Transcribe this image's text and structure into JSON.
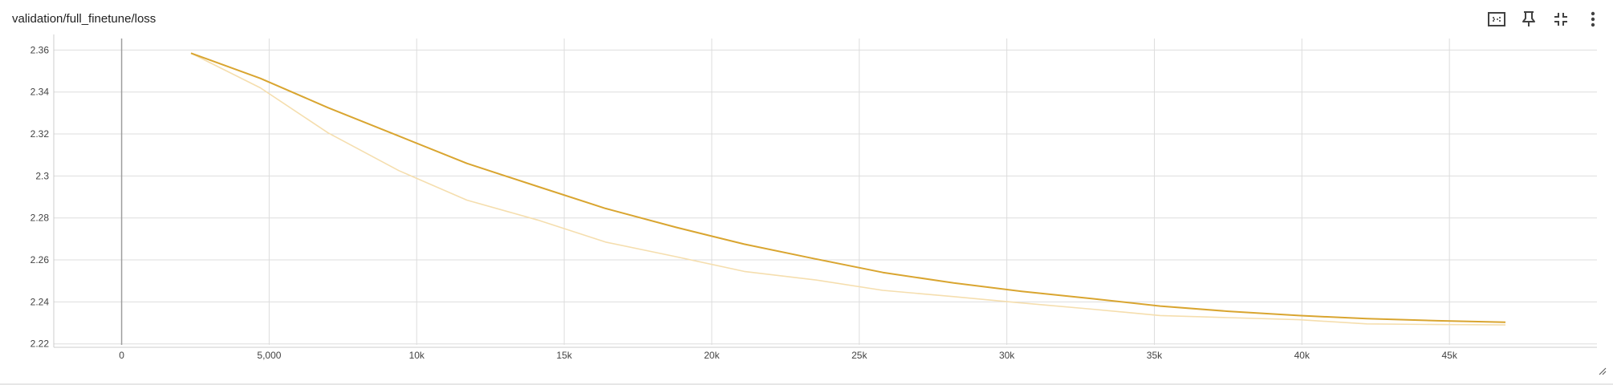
{
  "card": {
    "title": "validation/full_finetune/loss"
  },
  "toolbar": {
    "icons": [
      "fit-domain-icon",
      "pin-icon",
      "collapse-icon",
      "more-vert-icon"
    ]
  },
  "colors": {
    "smoothed": "#d9a530",
    "raw": "#f5deae",
    "grid": "#dddddd",
    "axis_zero": "#9e9e9e"
  },
  "chart_data": {
    "type": "line",
    "title": "validation/full_finetune/loss",
    "xlabel": "",
    "ylabel": "",
    "xlim": [
      -2300,
      50000
    ],
    "ylim": [
      2.2195,
      2.3655
    ],
    "grid": true,
    "x_ticks": [
      0,
      5000,
      10000,
      15000,
      20000,
      25000,
      30000,
      35000,
      40000,
      45000
    ],
    "x_tick_labels": [
      "0",
      "5,000",
      "10k",
      "15k",
      "20k",
      "25k",
      "30k",
      "35k",
      "40k",
      "45k"
    ],
    "y_ticks": [
      2.22,
      2.24,
      2.26,
      2.28,
      2.3,
      2.32,
      2.34,
      2.36
    ],
    "y_tick_labels": [
      "2.22",
      "2.24",
      "2.26",
      "2.28",
      "2.3",
      "2.32",
      "2.34",
      "2.36"
    ],
    "series": [
      {
        "role": "smoothed",
        "x": [
          2350,
          4700,
          7000,
          9400,
          11700,
          14100,
          16400,
          18800,
          21100,
          23500,
          25800,
          28200,
          30500,
          32900,
          35200,
          37500,
          39900,
          42200,
          44600,
          46900
        ],
        "y": [
          2.3585,
          2.3465,
          2.3325,
          2.319,
          2.306,
          2.295,
          2.2845,
          2.2755,
          2.2675,
          2.2605,
          2.254,
          2.249,
          2.245,
          2.2415,
          2.238,
          2.2355,
          2.2335,
          2.232,
          2.231,
          2.2303
        ]
      },
      {
        "role": "raw",
        "x": [
          2350,
          4700,
          7000,
          9400,
          11700,
          14100,
          16400,
          18800,
          21100,
          23500,
          25800,
          28200,
          30500,
          32900,
          35200,
          37500,
          39900,
          42200,
          44600,
          46900
        ],
        "y": [
          2.3585,
          2.342,
          2.3205,
          2.3025,
          2.2885,
          2.279,
          2.2685,
          2.2615,
          2.2545,
          2.2505,
          2.2455,
          2.2425,
          2.2395,
          2.2365,
          2.2335,
          2.2325,
          2.2315,
          2.2295,
          2.2292,
          2.229
        ]
      }
    ]
  }
}
